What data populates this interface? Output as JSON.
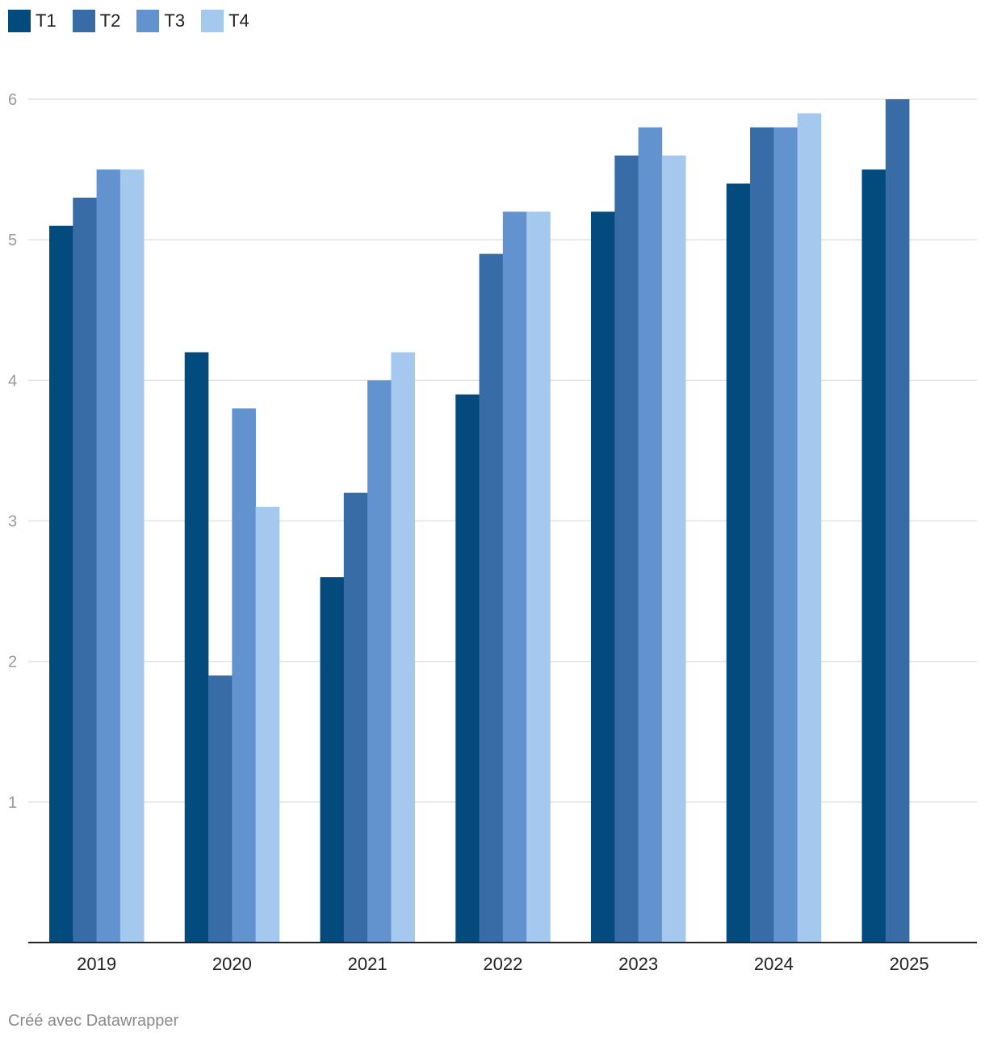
{
  "chart_data": {
    "type": "bar",
    "categories": [
      "2019",
      "2020",
      "2021",
      "2022",
      "2023",
      "2024",
      "2025"
    ],
    "series": [
      {
        "name": "T1",
        "color": "#034a7d",
        "values": [
          5.1,
          4.2,
          2.6,
          3.9,
          5.2,
          5.4,
          5.5
        ]
      },
      {
        "name": "T2",
        "color": "#386ca7",
        "values": [
          5.3,
          1.9,
          3.2,
          4.9,
          5.6,
          5.8,
          6.0
        ]
      },
      {
        "name": "T3",
        "color": "#6393ce",
        "values": [
          5.5,
          3.8,
          4.0,
          5.2,
          5.8,
          5.8,
          null
        ]
      },
      {
        "name": "T4",
        "color": "#a4c8ee",
        "values": [
          5.5,
          3.1,
          4.2,
          5.2,
          5.6,
          5.9,
          null
        ]
      }
    ],
    "y_ticks": [
      "1",
      "2",
      "3",
      "4",
      "5",
      "6"
    ],
    "ylim": [
      0,
      6
    ],
    "grid": true,
    "legend": "top-left"
  },
  "footer": "Créé avec Datawrapper"
}
